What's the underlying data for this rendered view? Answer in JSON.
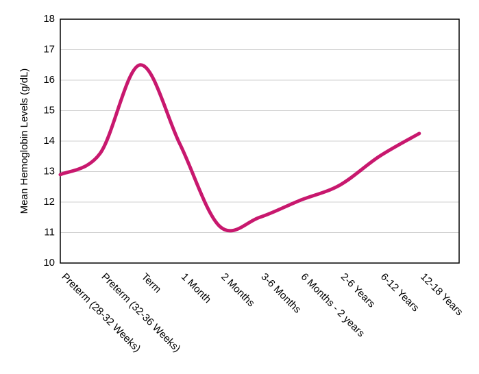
{
  "chart_data": {
    "type": "line",
    "y_label": "Mean Hemoglobin Levels (g/dL)",
    "categories": [
      "Preterm (28-32 Weeks)",
      "Preterm (32-36 Weeks)",
      "Term",
      "1 Month",
      "2 Months",
      "3-6 Months",
      "6 Months - 2 years",
      "2-6 Years",
      "6-12 Years",
      "12-18 Years"
    ],
    "values": [
      12.9,
      13.6,
      16.5,
      13.9,
      11.2,
      11.5,
      12.05,
      12.55,
      13.5,
      14.25
    ],
    "color": "#c8186e",
    "ylim": [
      10,
      18
    ],
    "yticks": [
      10,
      11,
      12,
      13,
      14,
      15,
      16,
      17,
      18
    ],
    "grid": true
  }
}
